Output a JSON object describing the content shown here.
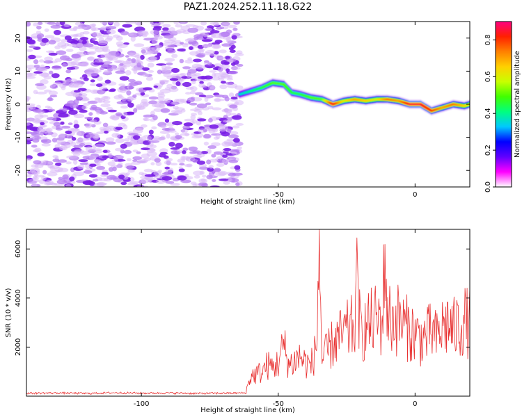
{
  "figure": {
    "title": "PAZ1.2024.252.11.18.G22"
  },
  "colorbar": {
    "label": "Normalized spectral amplitude",
    "range": [
      0,
      0.9
    ],
    "ticks": [
      "0.0",
      "0.2",
      "0.4",
      "0.6",
      "0.8"
    ],
    "tick_values": [
      0.0,
      0.2,
      0.4,
      0.6,
      0.8
    ],
    "colors": [
      "#ffffff",
      "#ff00ff",
      "#6000ff",
      "#0000ff",
      "#00c8ff",
      "#00ff80",
      "#40ff00",
      "#c8ff00",
      "#ffd000",
      "#ff8000",
      "#ff2000",
      "#ff0080"
    ]
  },
  "chart_data": [
    {
      "type": "heatmap",
      "title": "",
      "xlabel": "Height of straight line (km)",
      "ylabel": "Frequency (Hz)",
      "xlim": [
        -142,
        20
      ],
      "ylim": [
        -25,
        25
      ],
      "x_ticks": [
        -100,
        -50,
        0
      ],
      "y_ticks": [
        -20,
        -10,
        0,
        10,
        20
      ],
      "x_tick_labels": [
        "-100",
        "-50",
        "0"
      ],
      "y_tick_labels": [
        "-20",
        "-10",
        "0",
        "10",
        "20"
      ],
      "noise_region_x": [
        -142,
        -64
      ],
      "ridge": {
        "x": [
          -64,
          -60,
          -56,
          -52,
          -48,
          -45,
          -42,
          -38,
          -34,
          -30,
          -26,
          -22,
          -18,
          -14,
          -10,
          -6,
          -2,
          2,
          6,
          10,
          14,
          18,
          20
        ],
        "freq": [
          3,
          4,
          5,
          6.5,
          6,
          3.5,
          3,
          2,
          1.5,
          0,
          1,
          1.5,
          1,
          1.5,
          1.5,
          1,
          0,
          0,
          -2,
          -1,
          0,
          -0.5,
          0
        ],
        "amplitude": [
          0.35,
          0.4,
          0.45,
          0.5,
          0.5,
          0.45,
          0.45,
          0.5,
          0.5,
          0.85,
          0.6,
          0.7,
          0.65,
          0.6,
          0.75,
          0.7,
          0.85,
          0.85,
          0.8,
          0.7,
          0.75,
          0.65,
          0.6
        ]
      }
    },
    {
      "type": "line",
      "title": "",
      "xlabel": "Height of straight line (km)",
      "ylabel": "SNR (10 * v/v)",
      "xlim": [
        -142,
        20
      ],
      "ylim": [
        0,
        6800
      ],
      "x_ticks": [
        -100,
        -50,
        0
      ],
      "y_ticks": [
        2000,
        4000,
        6000
      ],
      "x_tick_labels": [
        "-100",
        "-50",
        "0"
      ],
      "y_tick_labels": [
        "2000",
        "4000",
        "6000"
      ],
      "color": "#e83030",
      "series": [
        {
          "x": [
            -142,
            -130,
            -120,
            -110,
            -100,
            -90,
            -80,
            -70,
            -62,
            -60,
            -58,
            -56,
            -54,
            -52,
            -50,
            -48,
            -46,
            -44,
            -42,
            -40,
            -38,
            -36,
            -35,
            -34,
            -32,
            -30,
            -28,
            -26,
            -24,
            -22,
            -21,
            -20,
            -18,
            -16,
            -14,
            -12,
            -11,
            -10,
            -8,
            -6,
            -4,
            -2,
            0,
            2,
            4,
            6,
            8,
            10,
            12,
            14,
            16,
            18,
            20
          ],
          "y": [
            120,
            130,
            110,
            140,
            120,
            130,
            110,
            120,
            130,
            900,
            1000,
            1100,
            1400,
            1300,
            1500,
            2300,
            1400,
            1600,
            1800,
            1500,
            1400,
            2200,
            6800,
            1600,
            2000,
            2400,
            2600,
            2800,
            3000,
            3200,
            5400,
            2800,
            3100,
            3300,
            3500,
            3400,
            6200,
            3600,
            3400,
            3500,
            3200,
            3000,
            2800,
            2600,
            2700,
            2900,
            2600,
            3100,
            3300,
            3000,
            3200,
            3400,
            3300
          ]
        }
      ]
    }
  ]
}
